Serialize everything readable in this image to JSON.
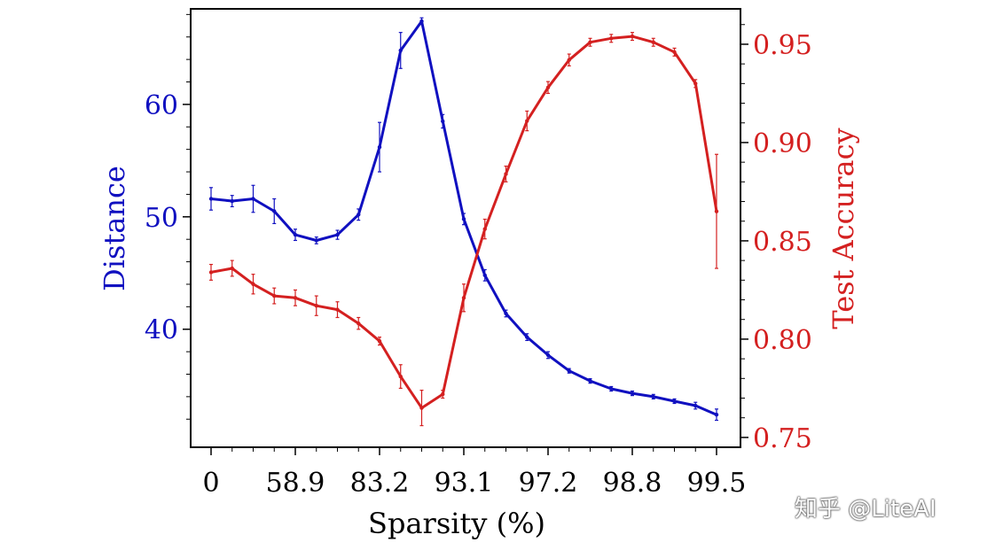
{
  "chart_data": {
    "type": "line",
    "xlabel": "Sparsity (%)",
    "x_ticks": [
      "0",
      "58.9",
      "83.2",
      "93.1",
      "97.2",
      "98.8",
      "99.5"
    ],
    "x_tick_positions": [
      0,
      4,
      8,
      12,
      16,
      20,
      24
    ],
    "x": [
      0,
      1,
      2,
      3,
      4,
      5,
      6,
      7,
      8,
      9,
      10,
      11,
      12,
      13,
      14,
      15,
      16,
      17,
      18,
      19,
      20,
      21,
      22,
      23,
      24
    ],
    "y_left": {
      "label": "Distance",
      "color": "#1010c0",
      "ylim": [
        29.5,
        68.5
      ],
      "ticks": [
        40,
        50,
        60
      ]
    },
    "y_right": {
      "label": "Test Accuracy",
      "color": "#d42020",
      "ylim": [
        0.745,
        0.968
      ],
      "ticks": [
        "0.75",
        "0.80",
        "0.85",
        "0.90",
        "0.95"
      ]
    },
    "series": [
      {
        "name": "Distance",
        "axis": "left",
        "color": "#1010c0",
        "values": [
          51.6,
          51.4,
          51.6,
          50.5,
          48.4,
          47.9,
          48.4,
          50.2,
          56.2,
          64.8,
          67.4,
          58.5,
          49.8,
          44.8,
          41.4,
          39.3,
          37.7,
          36.3,
          35.4,
          34.7,
          34.3,
          34.0,
          33.6,
          33.2,
          32.4
        ],
        "errors": [
          1.0,
          0.5,
          1.2,
          1.1,
          0.5,
          0.3,
          0.4,
          0.5,
          2.2,
          1.6,
          0.3,
          0.6,
          0.5,
          0.5,
          0.3,
          0.3,
          0.3,
          0.2,
          0.2,
          0.2,
          0.2,
          0.2,
          0.2,
          0.3,
          0.5
        ]
      },
      {
        "name": "Test Accuracy",
        "axis": "right",
        "color": "#d42020",
        "values": [
          0.834,
          0.836,
          0.828,
          0.822,
          0.821,
          0.817,
          0.815,
          0.808,
          0.799,
          0.781,
          0.765,
          0.772,
          0.821,
          0.856,
          0.884,
          0.911,
          0.928,
          0.942,
          0.951,
          0.953,
          0.954,
          0.951,
          0.946,
          0.93,
          0.865
        ],
        "errors": [
          0.004,
          0.004,
          0.005,
          0.004,
          0.004,
          0.005,
          0.004,
          0.003,
          0.002,
          0.006,
          0.009,
          0.002,
          0.007,
          0.005,
          0.004,
          0.005,
          0.003,
          0.003,
          0.002,
          0.002,
          0.002,
          0.002,
          0.002,
          0.002,
          0.029
        ]
      }
    ],
    "grid": false,
    "legend": "none"
  },
  "watermark": "知乎 @LiteAI"
}
